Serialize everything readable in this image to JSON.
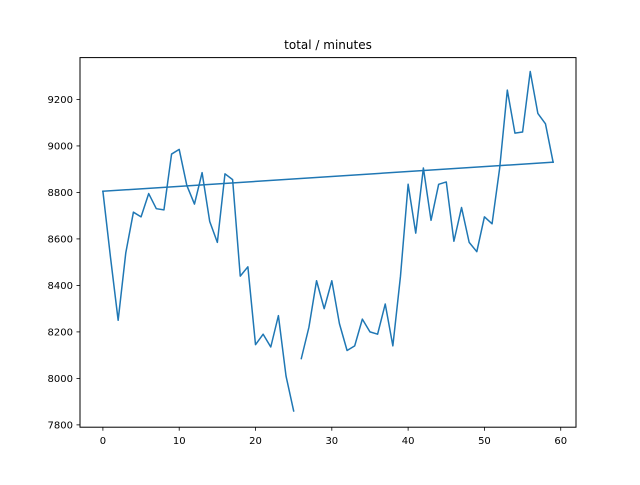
{
  "chart_data": {
    "type": "line",
    "title": "total / minutes",
    "xlabel": "",
    "ylabel": "",
    "xlim": [
      -3,
      62
    ],
    "ylim": [
      7790,
      9380
    ],
    "x_ticks": [
      0,
      10,
      20,
      30,
      40,
      50,
      60
    ],
    "y_ticks": [
      7800,
      8000,
      8200,
      8400,
      8600,
      8800,
      9000,
      9200
    ],
    "grid": false,
    "series": [
      {
        "color": "#1f77b4",
        "segments": [
          {
            "x": [
              0,
              1,
              2,
              3,
              4,
              5,
              6,
              7,
              8,
              9,
              10,
              11,
              12,
              13,
              14,
              15,
              16,
              17,
              18,
              19,
              20,
              21,
              22,
              23,
              24,
              25
            ],
            "y": [
              8805,
              8520,
              8250,
              8540,
              8715,
              8695,
              8795,
              8730,
              8725,
              8965,
              8985,
              8830,
              8750,
              8885,
              8675,
              8585,
              8880,
              8855,
              8440,
              8480,
              8145,
              8190,
              8135,
              8270,
              8010,
              7860
            ]
          },
          {
            "x": [
              26,
              27,
              28,
              29,
              30,
              31,
              32,
              33,
              34,
              35,
              36,
              37,
              38,
              39,
              40,
              41,
              42,
              43,
              44,
              45,
              46,
              47,
              48,
              49,
              50,
              51,
              52,
              53,
              54,
              55,
              56,
              57,
              58,
              59
            ],
            "y": [
              8085,
              8220,
              8420,
              8300,
              8420,
              8235,
              8120,
              8140,
              8255,
              8200,
              8190,
              8320,
              8140,
              8440,
              8835,
              8625,
              8905,
              8680,
              8835,
              8845,
              8590,
              8735,
              8585,
              8545,
              8695,
              8665,
              8905,
              9240,
              9055,
              9060,
              9320,
              9140,
              9095,
              8930
            ]
          },
          {
            "x": [
              0,
              59
            ],
            "y": [
              8805,
              8930
            ]
          }
        ]
      }
    ]
  }
}
